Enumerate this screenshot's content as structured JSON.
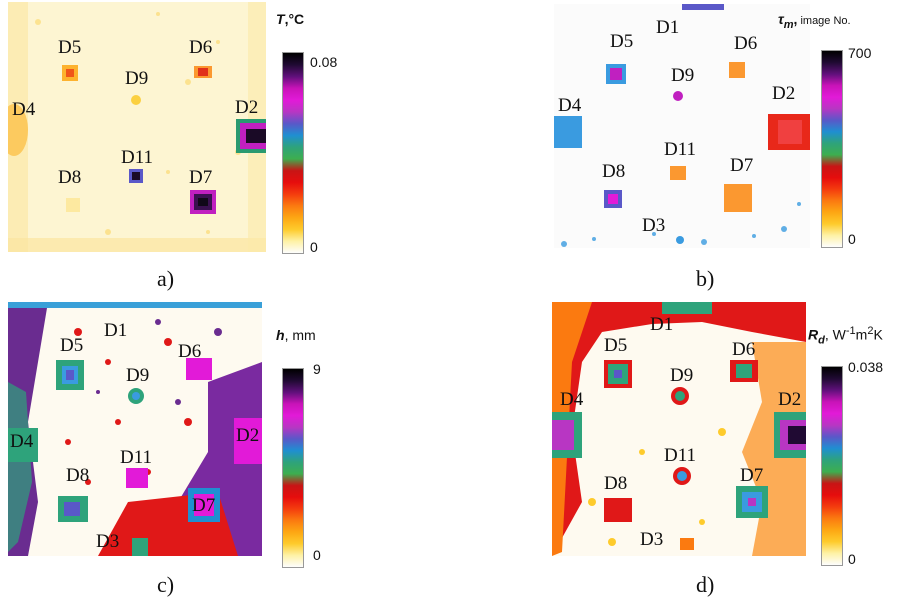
{
  "colorbar_gradient": [
    "#fdfdfd",
    "#fef2a6",
    "#fecb2c",
    "#fda713",
    "#fb7a10",
    "#f43c0e",
    "#e60d0d",
    "#c81515",
    "#3dae4f",
    "#2ea37b",
    "#1f8fd1",
    "#5a58c8",
    "#b836c3",
    "#e21ad8",
    "#c913b8",
    "#60107b",
    "#200a33",
    "#000000"
  ],
  "panels": [
    {
      "caption": "a)",
      "colorbar": {
        "symbol": "T",
        "unit": ",°C",
        "small_unit": "",
        "max": "0.08",
        "min": "0"
      },
      "defects": [
        "D5",
        "D6",
        "D9",
        "D4",
        "D2",
        "D11",
        "D8",
        "D7"
      ]
    },
    {
      "caption": "b)",
      "colorbar": {
        "symbol": "τ",
        "sub": "m",
        "unit": ",",
        "small_unit": " image No.",
        "max": "700",
        "min": "0"
      },
      "defects": [
        "D1",
        "D5",
        "D6",
        "D9",
        "D4",
        "D2",
        "D11",
        "D8",
        "D7",
        "D3"
      ]
    },
    {
      "caption": "c)",
      "colorbar": {
        "symbol": "h",
        "unit": ", mm",
        "small_unit": "",
        "max": "9",
        "min": "0"
      },
      "defects": [
        "D1",
        "D5",
        "D6",
        "D9",
        "D4",
        "D2",
        "D11",
        "D8",
        "D7",
        "D3"
      ]
    },
    {
      "caption": "d)",
      "colorbar": {
        "symbol": "R",
        "sub": "d",
        "unit": ", W",
        "sup1": "-1",
        "unit2": "m",
        "sup2": "2",
        "unit3": "K",
        "max": "0.038",
        "min": "0"
      },
      "defects": [
        "D1",
        "D5",
        "D6",
        "D9",
        "D4",
        "D2",
        "D11",
        "D8",
        "D7",
        "D3"
      ]
    }
  ]
}
